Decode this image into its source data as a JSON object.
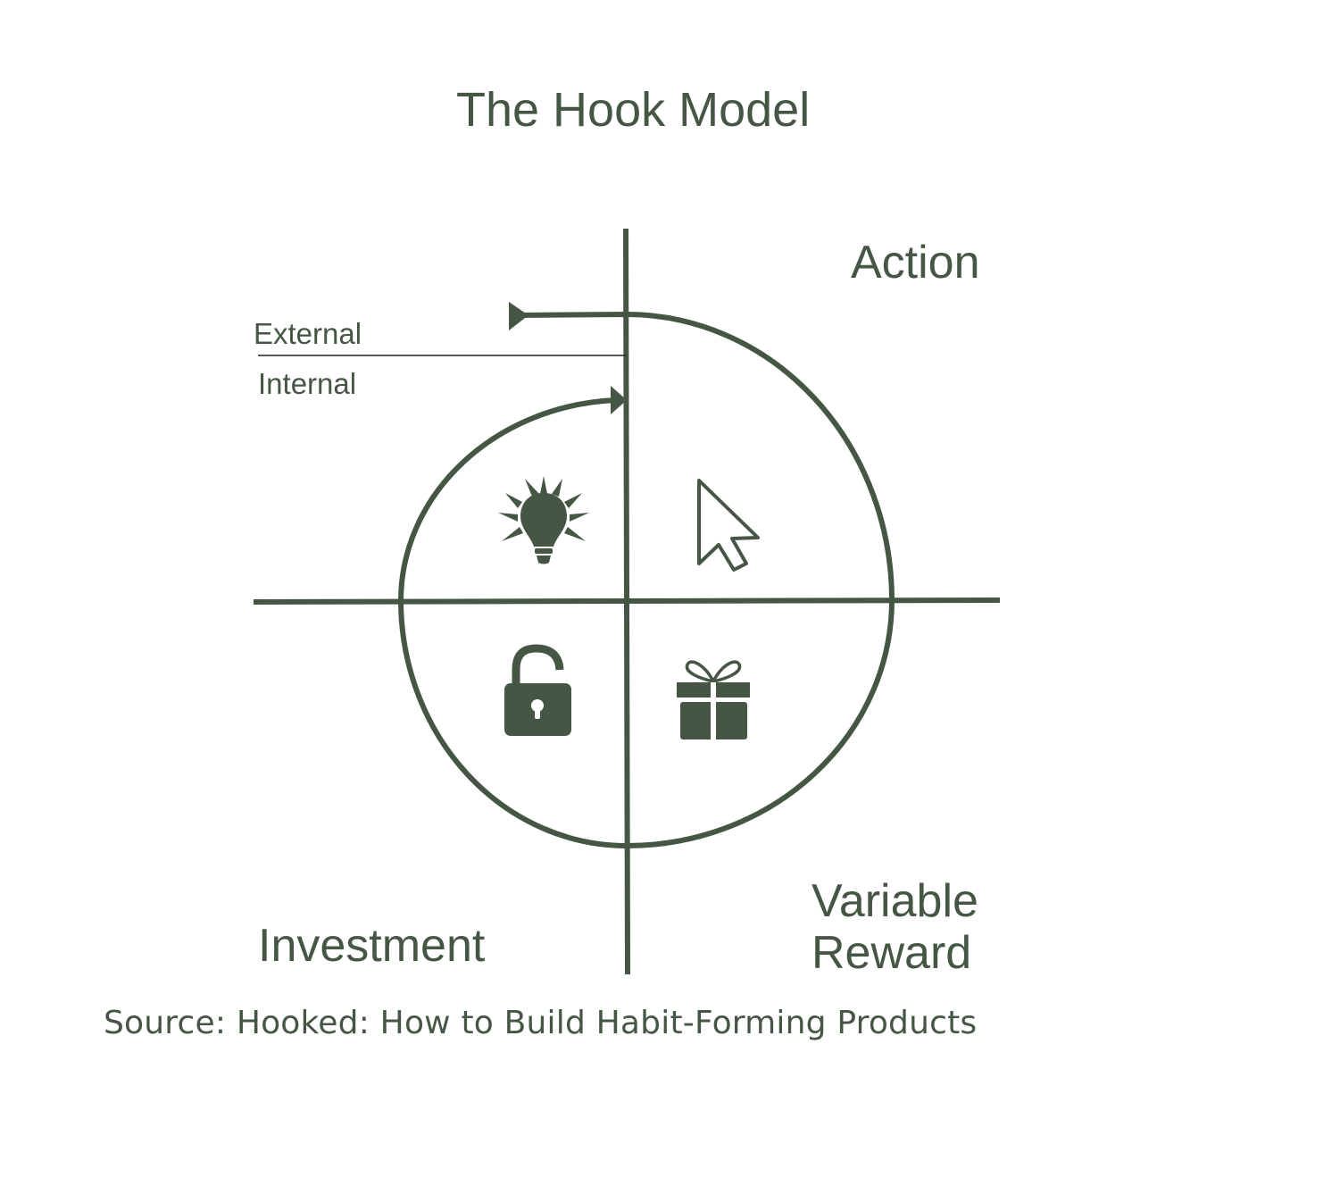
{
  "title": "The Hook Model",
  "phases": {
    "action": "Action",
    "variable_reward_line1": "Variable",
    "variable_reward_line2": "Reward",
    "investment": "Investment"
  },
  "triggers": {
    "external": "External",
    "internal": "Internal"
  },
  "icons": {
    "trigger": "lightbulb-icon",
    "action": "cursor-arrow-icon",
    "reward": "gift-icon",
    "investment": "padlock-icon"
  },
  "source": "Source: Hooked: How to Build Habit-Forming Products",
  "colors": {
    "primary": "#465644",
    "background": "#ffffff"
  }
}
